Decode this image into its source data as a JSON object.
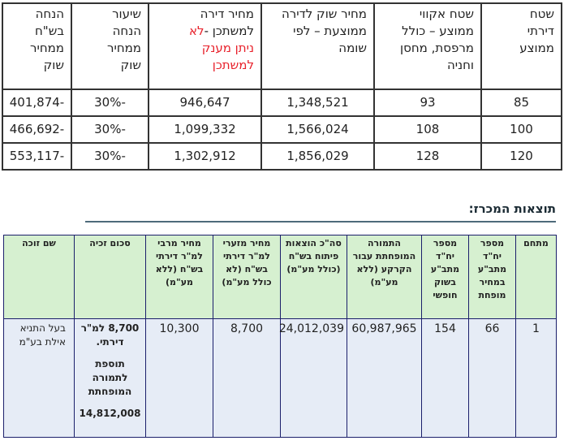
{
  "top_table": {
    "headers": [
      {
        "lines": [
          "שטח",
          "דירתי",
          "ממוצע"
        ]
      },
      {
        "lines": [
          "שטח אקווי",
          "ממוצע – כולל",
          "מרפסת, מחסן",
          "וחניה"
        ]
      },
      {
        "lines": [
          "מחיר שוק לדירה",
          "ממוצעת – לפי",
          "שומה"
        ]
      },
      {
        "line1": "מחיר דירה",
        "line2": "למשתכן -",
        "red1": "לא",
        "red2": "ניתן מענק",
        "red3": "למשתכן"
      },
      {
        "lines": [
          "שיעור",
          "הנחה",
          "ממחיר",
          "שוק"
        ]
      },
      {
        "lines": [
          "הנחה בש\"ח",
          "ממחיר שוק"
        ]
      }
    ],
    "rows": [
      [
        "85",
        "93",
        "1,348,521",
        "946,647",
        "-30%",
        "-401,874"
      ],
      [
        "100",
        "108",
        "1,566,024",
        "1,099,332",
        "-30%",
        "-466,692"
      ],
      [
        "120",
        "128",
        "1,856,029",
        "1,302,912",
        "-30%",
        "-553,117"
      ]
    ]
  },
  "section": {
    "title": "תוצאות המכרז:"
  },
  "results_table": {
    "headers": [
      "מתחם",
      "מספר יח\"ד מתב\"ע במחיר מופחת",
      "מספר יח\"ד מתב\"ע בשוק חופשי",
      "התמורה המופחתת עבור הקרקע (ללא מע\"מ)",
      "סה\"כ הוצאות פיתוח בש\"ח (כולל מע\"מ)",
      "מחיר מזערי למ\"ר דירתי בש\"ח (לא כולל מע\"מ)",
      "מחיר מרבי למ\"ר דירתי בש\"ח (ללא מע\"מ)",
      "סכום זכיה",
      "שם זוכה"
    ],
    "row": {
      "complex": "1",
      "reduced_units": "66",
      "free_units": "154",
      "reduced_payment": "60,987,965",
      "dev_costs": "24,012,039",
      "min_price": "8,700",
      "max_price": "10,300",
      "amount_line1": "8,700 למ\"ר דירתי.",
      "amount_line2": "תוספת לתמורה המופחתת",
      "amount_line3": "14,812,008",
      "winner": "בעל התניא אילת בע\"מ"
    }
  }
}
